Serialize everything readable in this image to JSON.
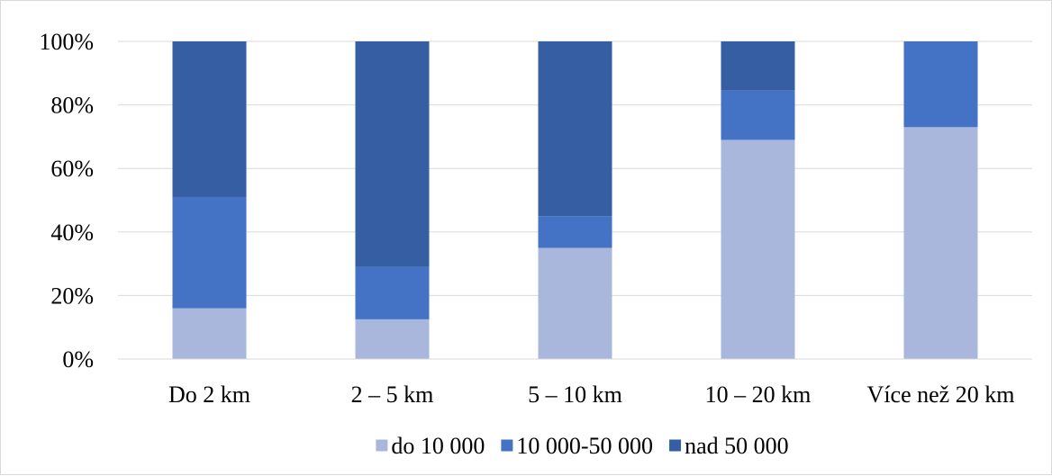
{
  "chart_data": {
    "type": "bar",
    "stacked": "percent",
    "title": "",
    "xlabel": "",
    "ylabel": "",
    "categories": [
      "Do 2 km",
      "2 – 5 km",
      "5 – 10 km",
      "10 – 20 km",
      "Více než 20 km"
    ],
    "series": [
      {
        "name": "do 10 000",
        "color": "#a9b7dc",
        "values": [
          16,
          12.5,
          35,
          69,
          73
        ]
      },
      {
        "name": "10 000-50 000",
        "color": "#4472c4",
        "values": [
          35,
          16.5,
          10,
          15.5,
          27
        ]
      },
      {
        "name": "nad 50 000",
        "color": "#355ea3",
        "values": [
          49,
          71,
          55,
          15.5,
          0
        ]
      }
    ],
    "ylim": [
      0,
      100
    ],
    "yticks": [
      "0%",
      "20%",
      "40%",
      "60%",
      "80%",
      "100%"
    ],
    "grid": true,
    "legend_position": "bottom"
  }
}
